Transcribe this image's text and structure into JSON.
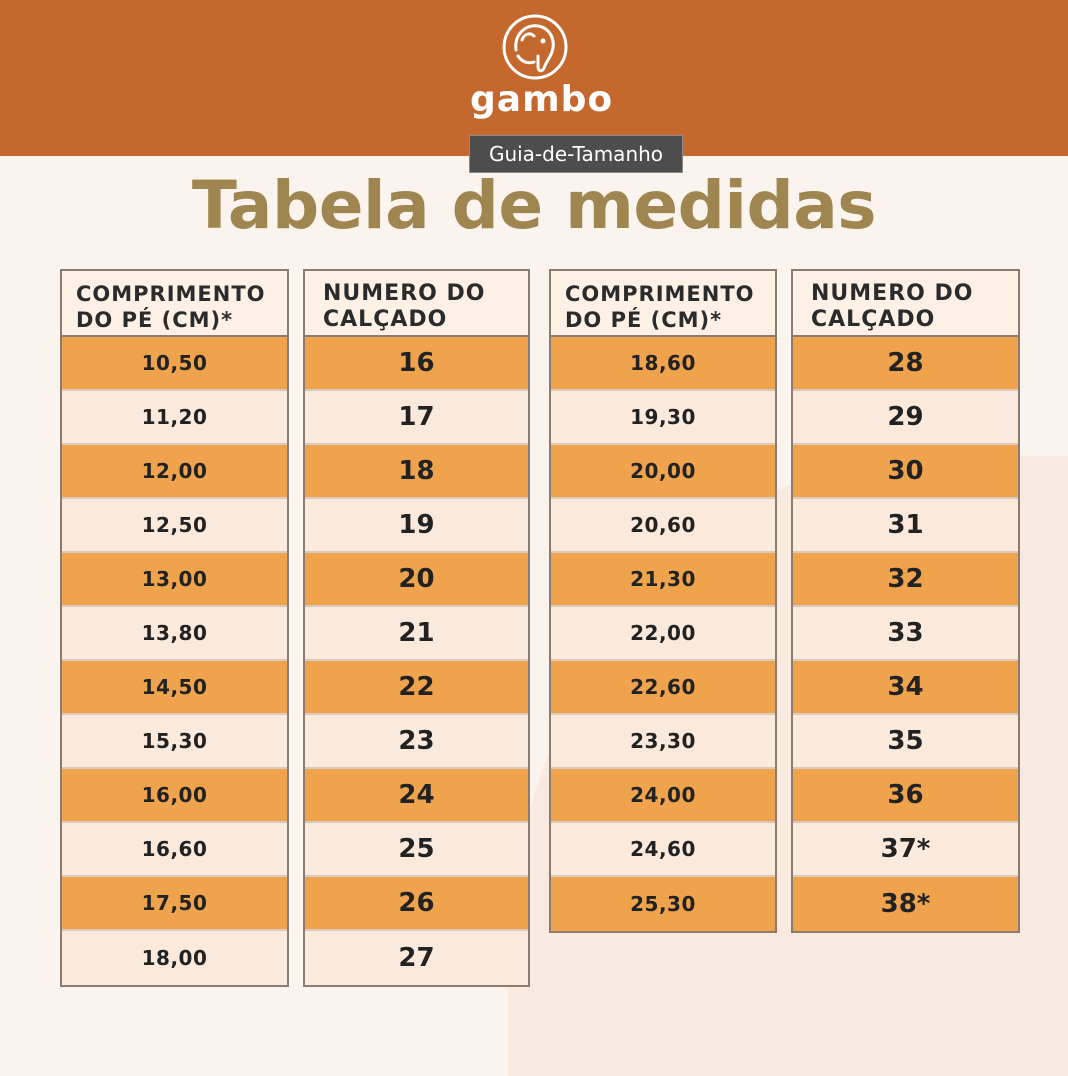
{
  "brand": {
    "name": "gambo"
  },
  "tooltip": {
    "text": "Guia-de-Tamanho"
  },
  "title": "Tabela de medidas",
  "colors": {
    "header": "#c5682e",
    "title": "#9f8651",
    "row_orange": "#eea34c",
    "row_light": "#fbe9dc"
  },
  "tables": [
    {
      "length_header": "COMPRIMENTO DO PÉ (CM)*",
      "size_header": "NUMERO DO CALÇADO",
      "rows": [
        {
          "length": "10,50",
          "size": "16"
        },
        {
          "length": "11,20",
          "size": "17"
        },
        {
          "length": "12,00",
          "size": "18"
        },
        {
          "length": "12,50",
          "size": "19"
        },
        {
          "length": "13,00",
          "size": "20"
        },
        {
          "length": "13,80",
          "size": "21"
        },
        {
          "length": "14,50",
          "size": "22"
        },
        {
          "length": "15,30",
          "size": "23"
        },
        {
          "length": "16,00",
          "size": "24"
        },
        {
          "length": "16,60",
          "size": "25"
        },
        {
          "length": "17,50",
          "size": "26"
        },
        {
          "length": "18,00",
          "size": "27"
        }
      ]
    },
    {
      "length_header": "COMPRIMENTO DO PÉ (CM)*",
      "size_header": "NUMERO DO CALÇADO",
      "rows": [
        {
          "length": "18,60",
          "size": "28"
        },
        {
          "length": "19,30",
          "size": "29"
        },
        {
          "length": "20,00",
          "size": "30"
        },
        {
          "length": "20,60",
          "size": "31"
        },
        {
          "length": "21,30",
          "size": "32"
        },
        {
          "length": "22,00",
          "size": "33"
        },
        {
          "length": "22,60",
          "size": "34"
        },
        {
          "length": "23,30",
          "size": "35"
        },
        {
          "length": "24,00",
          "size": "36"
        },
        {
          "length": "24,60",
          "size": "37*"
        },
        {
          "length": "25,30",
          "size": "38*"
        }
      ]
    }
  ]
}
